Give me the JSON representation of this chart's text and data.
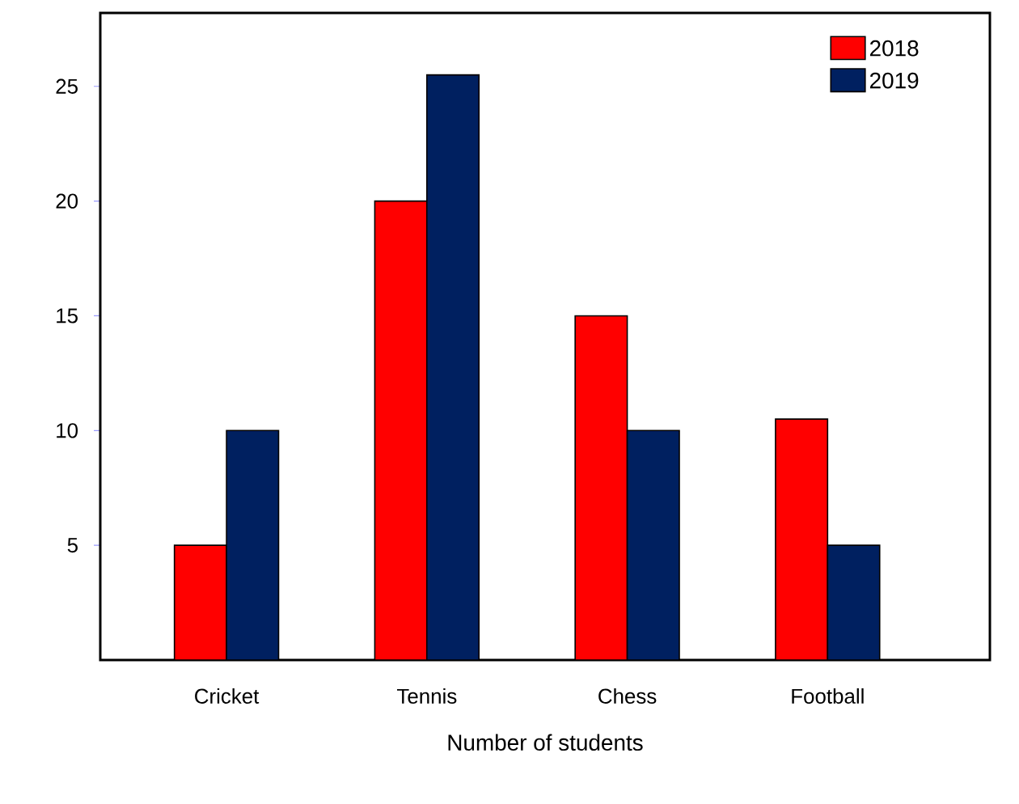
{
  "chart_data": {
    "type": "bar",
    "xlabel": "Number of students",
    "categories": [
      "Cricket",
      "Tennis",
      "Chess",
      "Football"
    ],
    "series": [
      {
        "name": "2018",
        "color": "#ff0000",
        "values": [
          5,
          20,
          15,
          10.5
        ]
      },
      {
        "name": "2019",
        "color": "#002060",
        "values": [
          10,
          25.5,
          10,
          5
        ]
      }
    ],
    "ylim": [
      0,
      28.2
    ],
    "yticks": [
      5,
      10,
      15,
      20,
      25
    ],
    "legend": "top right"
  }
}
